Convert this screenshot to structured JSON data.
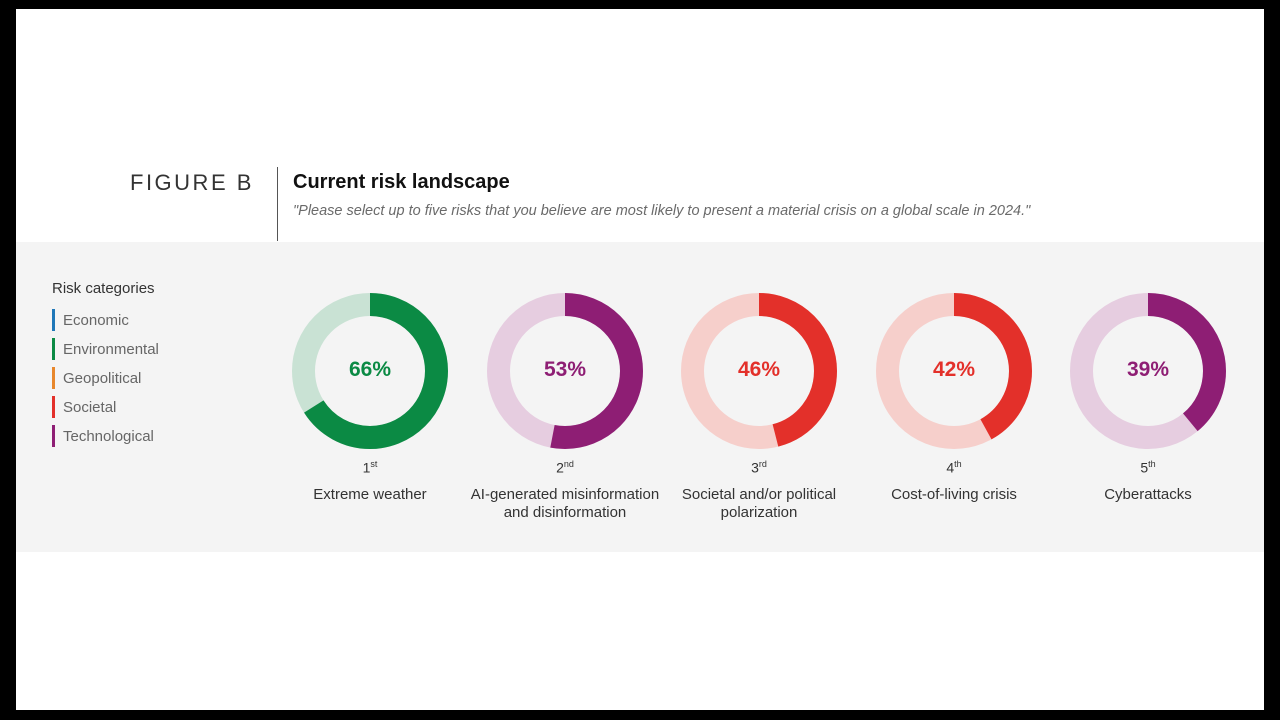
{
  "figure": {
    "label": "FIGURE B",
    "title": "Current risk landscape",
    "subtitle": "\"Please select up to five risks that you believe are most likely to present a material crisis on a global scale in 2024.\""
  },
  "legend": {
    "title": "Risk categories",
    "items": [
      {
        "label": "Economic",
        "color": "#1f77b8"
      },
      {
        "label": "Environmental",
        "color": "#0b8a44"
      },
      {
        "label": "Geopolitical",
        "color": "#e8872c"
      },
      {
        "label": "Societal",
        "color": "#e3302a"
      },
      {
        "label": "Technological",
        "color": "#8e1e74"
      }
    ]
  },
  "chart_data": {
    "type": "donut",
    "title": "Current risk landscape",
    "subtitle": "\"Please select up to five risks that you believe are most likely to present a material crisis on a global scale in 2024.\"",
    "unit": "%",
    "items": [
      {
        "rank": "1",
        "suffix": "st",
        "name": "Extreme weather",
        "value": 66,
        "pct_label": "66%",
        "category": "Environmental",
        "color": "#0b8a44",
        "track_color": "#c9e2d4"
      },
      {
        "rank": "2",
        "suffix": "nd",
        "name": "AI-generated misinformation and disinformation",
        "value": 53,
        "pct_label": "53%",
        "category": "Technological",
        "color": "#8e1e74",
        "track_color": "#e6cde0"
      },
      {
        "rank": "3",
        "suffix": "rd",
        "name": "Societal and/or political polarization",
        "value": 46,
        "pct_label": "46%",
        "category": "Societal",
        "color": "#e3302a",
        "track_color": "#f6cfcb"
      },
      {
        "rank": "4",
        "suffix": "th",
        "name": "Cost-of-living crisis",
        "value": 42,
        "pct_label": "42%",
        "category": "Societal",
        "color": "#e3302a",
        "track_color": "#f6cfcb"
      },
      {
        "rank": "5",
        "suffix": "th",
        "name": "Cyberattacks",
        "value": 39,
        "pct_label": "39%",
        "category": "Technological",
        "color": "#8e1e74",
        "track_color": "#e6cde0"
      }
    ]
  }
}
